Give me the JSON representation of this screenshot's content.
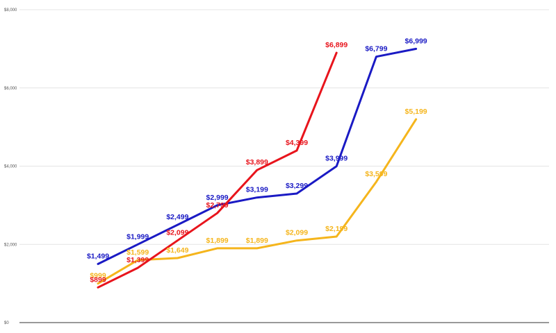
{
  "chart_data": {
    "type": "line",
    "title": "",
    "xlabel": "",
    "ylabel": "",
    "ylim": [
      0,
      8000
    ],
    "yticks": [
      0,
      2000,
      4000,
      6000,
      8000
    ],
    "ytick_labels": [
      "$0",
      "$2,000",
      "$4,000",
      "$6,000",
      "$8,000"
    ],
    "grid": true,
    "legend": "none",
    "series": [
      {
        "color": "#1a1ac4",
        "x": [
          1,
          2,
          3,
          4,
          5,
          6,
          7,
          8,
          9
        ],
        "values": [
          1499,
          1999,
          2499,
          2999,
          3199,
          3299,
          3999,
          6799,
          6999
        ],
        "labels": [
          "$1,499",
          "$1,999",
          "$2,499",
          "$2,999",
          "$3,199",
          "$3,299",
          "$3,999",
          "$6,799",
          "$6,999"
        ]
      },
      {
        "color": "#f5b51c",
        "x": [
          1,
          2,
          3,
          4,
          5,
          6,
          7,
          8,
          9
        ],
        "values": [
          999,
          1599,
          1649,
          1899,
          1899,
          2099,
          2199,
          3599,
          5199
        ],
        "labels": [
          "$999",
          "$1,599",
          "$1,649",
          "$1,899",
          "$1,899",
          "$2,099",
          "$2,199",
          "$3,599",
          "$5,199"
        ]
      },
      {
        "color": "#e8141c",
        "x": [
          1,
          2,
          3,
          4,
          5,
          6,
          7
        ],
        "values": [
          899,
          1399,
          2099,
          2799,
          3899,
          4399,
          6899
        ],
        "labels": [
          "$899",
          "$1,399",
          "$2,099",
          "$2,799",
          "$3,899",
          "$4,399",
          "$6,899"
        ]
      }
    ]
  }
}
